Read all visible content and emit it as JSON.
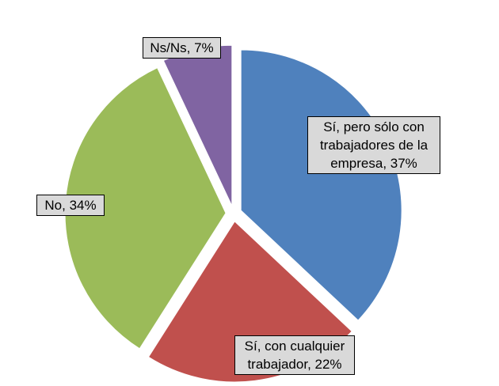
{
  "chart_data": {
    "type": "pie",
    "title": "",
    "slices": [
      {
        "name": "Sí, pero sólo con trabajadores de la empresa",
        "value": 37,
        "label_lines": [
          "Sí, pero sólo con",
          "trabajadores de la",
          "empresa, 37%"
        ],
        "color": "#4f81bd"
      },
      {
        "name": "Sí, con cualquier trabajador",
        "value": 22,
        "label_lines": [
          "Sí, con cualquier",
          "trabajador, 22%"
        ],
        "color": "#c0504d"
      },
      {
        "name": "No",
        "value": 34,
        "label_lines": [
          "No, 34%"
        ],
        "color": "#9bbb59"
      },
      {
        "name": "Ns/Ns",
        "value": 7,
        "label_lines": [
          "Ns/Ns, 7%"
        ],
        "color": "#8064a2"
      }
    ],
    "exploded": true,
    "legend": "none"
  }
}
